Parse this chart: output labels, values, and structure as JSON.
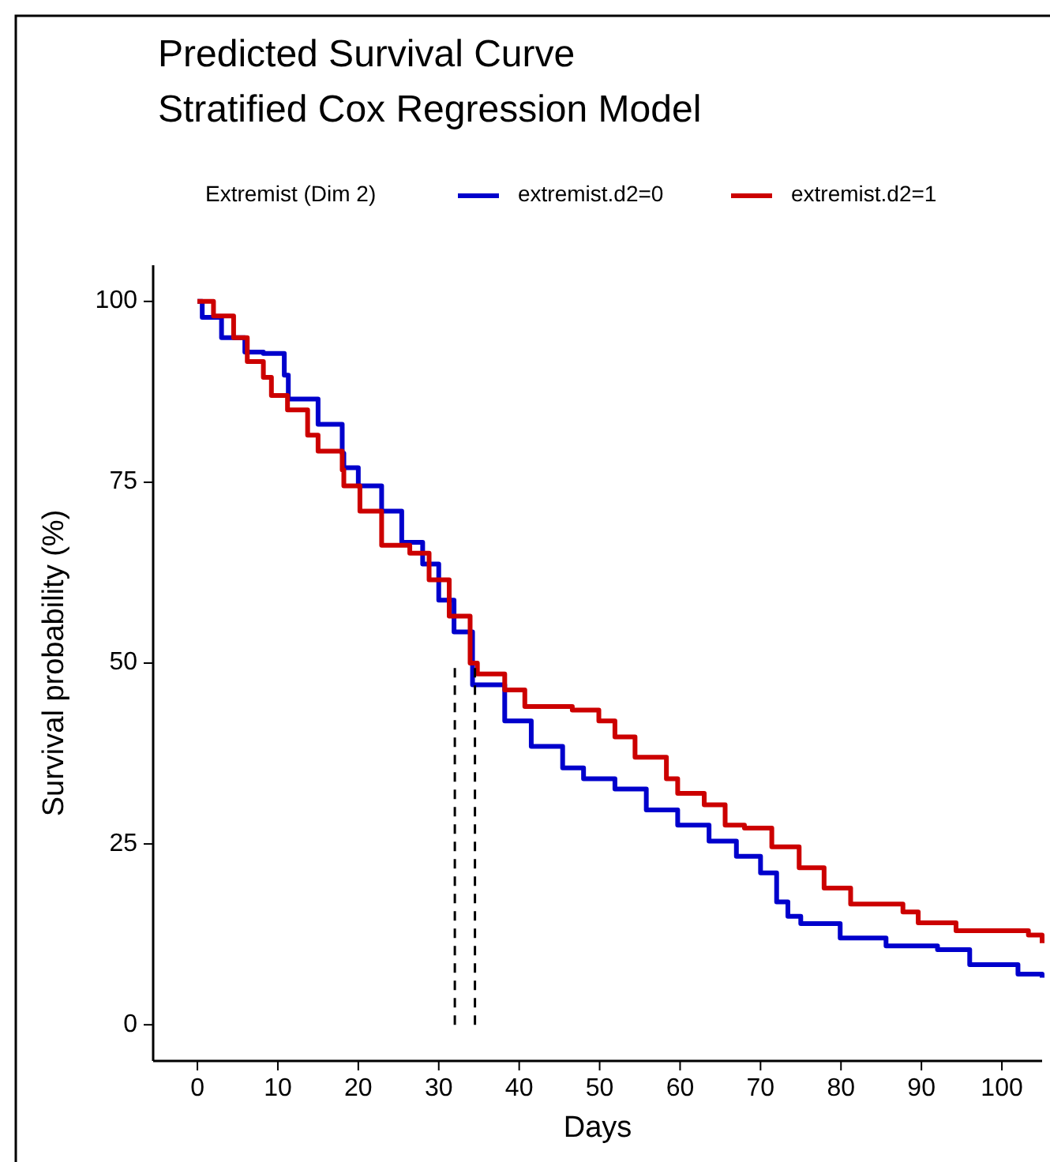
{
  "chart_data": {
    "type": "step",
    "title": "Predicted Survival Curve",
    "subtitle": "Stratified Cox Regression Model",
    "xlabel": "Days",
    "ylabel": "Survival probability (%)",
    "legend_title": "Extremist (Dim 2)",
    "legend": "top",
    "xlim": [
      -5.5,
      105
    ],
    "xticks": [
      0,
      10,
      20,
      30,
      40,
      50,
      60,
      70,
      80,
      90,
      100
    ],
    "ylim": [
      -5,
      105
    ],
    "yticks": [
      0,
      25,
      50,
      75,
      100
    ],
    "grid": false,
    "series": [
      {
        "name": "extremist.d2=0",
        "color": "#0000cc",
        "x": [
          0,
          0.6,
          3,
          5.9,
          8.2,
          10.8,
          11.3,
          15,
          18,
          18.2,
          20,
          22.9,
          25.4,
          28,
          30,
          31.9,
          34.2,
          38.2,
          41.5,
          45.4,
          48,
          51.9,
          55.8,
          59.7,
          63.6,
          67,
          70,
          72,
          73.4,
          75,
          79.9,
          85.6,
          92,
          96,
          102,
          105
        ],
        "values": [
          100,
          97.8,
          95,
          93,
          92.8,
          89.8,
          86.5,
          83,
          79,
          77,
          74.5,
          71,
          66.7,
          63.7,
          58.7,
          54.3,
          47,
          42,
          38.5,
          35.5,
          34,
          32.6,
          29.7,
          27.6,
          25.4,
          23.3,
          21,
          17,
          15,
          14,
          12,
          10.9,
          10.4,
          8.3,
          7,
          6.5
        ]
      },
      {
        "name": "extremist.d2=1",
        "color": "#cc0000",
        "x": [
          0,
          2,
          4.5,
          6.2,
          8.2,
          9.2,
          11.2,
          13.7,
          15,
          18,
          18.2,
          20.2,
          22.9,
          26.4,
          28.8,
          31.3,
          33.9,
          34.8,
          38.2,
          40.7,
          46.6,
          49.9,
          51.9,
          54.4,
          58.3,
          59.7,
          63,
          65.6,
          68,
          71.4,
          74.8,
          77.9,
          81.2,
          87.7,
          89.6,
          94.3,
          103.3,
          105
        ],
        "values": [
          100,
          98,
          95,
          91.7,
          89.5,
          87,
          85,
          81.5,
          79.3,
          76.7,
          74.5,
          71,
          66.3,
          65.2,
          61.5,
          56.5,
          50,
          48.5,
          46.3,
          44,
          43.5,
          42,
          39.8,
          37,
          34,
          32,
          30.4,
          27.6,
          27.2,
          24.6,
          21.7,
          18.9,
          16.7,
          15.6,
          14.1,
          13,
          12.4,
          11.3
        ]
      }
    ],
    "ref_lines": [
      {
        "axis": "x",
        "value": 32,
        "line_style": "dashed"
      },
      {
        "axis": "x",
        "value": 34.5,
        "line_style": "dashed"
      }
    ]
  }
}
